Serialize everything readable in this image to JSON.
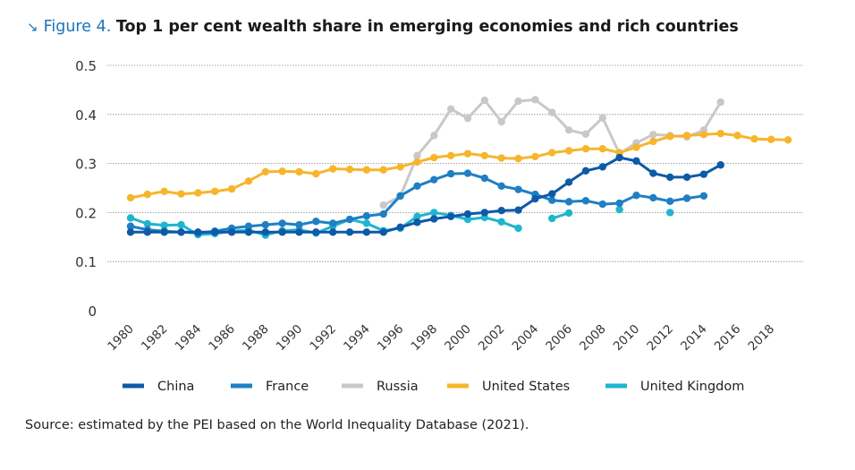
{
  "figure": {
    "icon": "arrow-down-right-icon",
    "number_label": "Figure 4.",
    "title": "Top 1 per cent wealth share in emerging economies and rich countries"
  },
  "source": "Source: estimated by the PEI based on the World Inequality Database (2021).",
  "chart_data": {
    "type": "line",
    "title": "Top 1 per cent wealth share in emerging economies and rich countries",
    "xlabel": "",
    "ylabel": "",
    "xlim": [
      1980,
      2019
    ],
    "ylim": [
      0,
      0.5
    ],
    "x_ticks": [
      "1980",
      "1982",
      "1984",
      "1986",
      "1988",
      "1990",
      "1992",
      "1994",
      "1996",
      "1998",
      "2000",
      "2002",
      "2004",
      "2006",
      "2008",
      "2010",
      "2012",
      "2014",
      "2016",
      "2018"
    ],
    "y_ticks": [
      "0",
      "0.1",
      "0.2",
      "0.3",
      "0.4",
      "0.5"
    ],
    "grid": true,
    "legend_position": "bottom",
    "series": [
      {
        "name": "China",
        "color": "#0d5aa7",
        "points": [
          [
            1980,
            0.16
          ],
          [
            1981,
            0.16
          ],
          [
            1982,
            0.16
          ],
          [
            1983,
            0.16
          ],
          [
            1984,
            0.16
          ],
          [
            1985,
            0.16
          ],
          [
            1986,
            0.16
          ],
          [
            1987,
            0.16
          ],
          [
            1988,
            0.16
          ],
          [
            1989,
            0.16
          ],
          [
            1990,
            0.16
          ],
          [
            1991,
            0.16
          ],
          [
            1992,
            0.16
          ],
          [
            1993,
            0.16
          ],
          [
            1994,
            0.16
          ],
          [
            1995,
            0.16
          ],
          [
            1996,
            0.17
          ],
          [
            1997,
            0.18
          ],
          [
            1998,
            0.187
          ],
          [
            1999,
            0.192
          ],
          [
            2000,
            0.197
          ],
          [
            2001,
            0.2
          ],
          [
            2002,
            0.204
          ],
          [
            2003,
            0.205
          ],
          [
            2004,
            0.228
          ],
          [
            2005,
            0.238
          ],
          [
            2006,
            0.262
          ],
          [
            2007,
            0.285
          ],
          [
            2008,
            0.293
          ],
          [
            2009,
            0.312
          ],
          [
            2010,
            0.305
          ],
          [
            2011,
            0.28
          ],
          [
            2012,
            0.272
          ],
          [
            2013,
            0.272
          ],
          [
            2014,
            0.278
          ],
          [
            2015,
            0.297
          ]
        ]
      },
      {
        "name": "France",
        "color": "#1f7fc4",
        "points": [
          [
            1980,
            0.172
          ],
          [
            1981,
            0.165
          ],
          [
            1982,
            0.162
          ],
          [
            1983,
            0.16
          ],
          [
            1984,
            0.158
          ],
          [
            1985,
            0.162
          ],
          [
            1986,
            0.168
          ],
          [
            1987,
            0.172
          ],
          [
            1988,
            0.175
          ],
          [
            1989,
            0.178
          ],
          [
            1990,
            0.175
          ],
          [
            1991,
            0.182
          ],
          [
            1992,
            0.178
          ],
          [
            1993,
            0.186
          ],
          [
            1994,
            0.193
          ],
          [
            1995,
            0.197
          ],
          [
            1996,
            0.234
          ],
          [
            1997,
            0.254
          ],
          [
            1998,
            0.267
          ],
          [
            1999,
            0.279
          ],
          [
            2000,
            0.28
          ],
          [
            2001,
            0.27
          ],
          [
            2002,
            0.254
          ],
          [
            2003,
            0.247
          ],
          [
            2004,
            0.237
          ],
          [
            2005,
            0.225
          ],
          [
            2006,
            0.222
          ],
          [
            2007,
            0.224
          ],
          [
            2008,
            0.217
          ],
          [
            2009,
            0.219
          ],
          [
            2010,
            0.235
          ],
          [
            2011,
            0.23
          ],
          [
            2012,
            0.223
          ],
          [
            2013,
            0.229
          ],
          [
            2014,
            0.234
          ]
        ]
      },
      {
        "name": "Russia",
        "color": "#c8c8c8",
        "points": [
          [
            1995,
            0.215
          ],
          [
            1996,
            0.233
          ],
          [
            1997,
            0.316
          ],
          [
            1998,
            0.357
          ],
          [
            1999,
            0.411
          ],
          [
            2000,
            0.392
          ],
          [
            2001,
            0.429
          ],
          [
            2002,
            0.385
          ],
          [
            2003,
            0.427
          ],
          [
            2004,
            0.43
          ],
          [
            2005,
            0.404
          ],
          [
            2006,
            0.368
          ],
          [
            2007,
            0.36
          ],
          [
            2008,
            0.393
          ],
          [
            2009,
            0.32
          ],
          [
            2010,
            0.342
          ],
          [
            2011,
            0.359
          ],
          [
            2012,
            0.357
          ],
          [
            2013,
            0.354
          ],
          [
            2014,
            0.368
          ],
          [
            2015,
            0.425
          ]
        ]
      },
      {
        "name": "United States",
        "color": "#f7b52c",
        "points": [
          [
            1980,
            0.23
          ],
          [
            1981,
            0.237
          ],
          [
            1982,
            0.243
          ],
          [
            1983,
            0.238
          ],
          [
            1984,
            0.24
          ],
          [
            1985,
            0.243
          ],
          [
            1986,
            0.248
          ],
          [
            1987,
            0.264
          ],
          [
            1988,
            0.283
          ],
          [
            1989,
            0.284
          ],
          [
            1990,
            0.283
          ],
          [
            1991,
            0.279
          ],
          [
            1992,
            0.289
          ],
          [
            1993,
            0.288
          ],
          [
            1994,
            0.287
          ],
          [
            1995,
            0.287
          ],
          [
            1996,
            0.293
          ],
          [
            1997,
            0.303
          ],
          [
            1998,
            0.312
          ],
          [
            1999,
            0.316
          ],
          [
            2000,
            0.32
          ],
          [
            2001,
            0.316
          ],
          [
            2002,
            0.311
          ],
          [
            2003,
            0.31
          ],
          [
            2004,
            0.314
          ],
          [
            2005,
            0.322
          ],
          [
            2006,
            0.326
          ],
          [
            2007,
            0.33
          ],
          [
            2008,
            0.33
          ],
          [
            2009,
            0.322
          ],
          [
            2010,
            0.333
          ],
          [
            2011,
            0.345
          ],
          [
            2012,
            0.355
          ],
          [
            2013,
            0.357
          ],
          [
            2014,
            0.359
          ],
          [
            2015,
            0.361
          ],
          [
            2016,
            0.357
          ],
          [
            2017,
            0.35
          ],
          [
            2018,
            0.349
          ],
          [
            2019,
            0.348
          ]
        ]
      },
      {
        "name": "United Kingdom",
        "color": "#1fb5ce",
        "segments": [
          [
            [
              1980,
              0.189
            ],
            [
              1981,
              0.177
            ],
            [
              1982,
              0.174
            ],
            [
              1983,
              0.175
            ],
            [
              1984,
              0.155
            ],
            [
              1985,
              0.157
            ],
            [
              1986,
              0.162
            ],
            [
              1987,
              0.164
            ],
            [
              1988,
              0.154
            ],
            [
              1989,
              0.163
            ],
            [
              1990,
              0.165
            ],
            [
              1991,
              0.158
            ],
            [
              1992,
              0.172
            ],
            [
              1993,
              0.186
            ],
            [
              1994,
              0.178
            ],
            [
              1995,
              0.163
            ],
            [
              1996,
              0.168
            ],
            [
              1997,
              0.192
            ],
            [
              1998,
              0.2
            ],
            [
              1999,
              0.194
            ],
            [
              2000,
              0.186
            ],
            [
              2001,
              0.19
            ],
            [
              2002,
              0.181
            ],
            [
              2003,
              0.168
            ]
          ],
          [
            [
              2005,
              0.188
            ],
            [
              2006,
              0.199
            ]
          ],
          [
            [
              2009,
              0.206
            ]
          ],
          [
            [
              2012,
              0.2
            ]
          ]
        ]
      }
    ]
  }
}
